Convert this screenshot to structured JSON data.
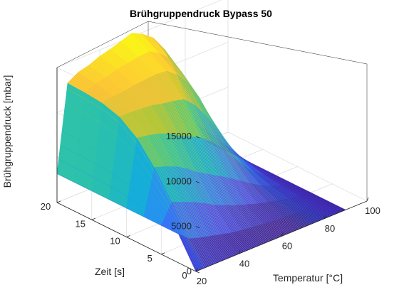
{
  "chart_data": {
    "type": "surface",
    "title": "Brühgruppendruck Bypass 50",
    "xlabel": "Temperatur [°C]",
    "ylabel": "Zeit [s]",
    "zlabel": "Brühgruppendruck [mbar]",
    "x_ticks": [
      "20",
      "40",
      "60",
      "80",
      "100"
    ],
    "y_ticks": [
      "0",
      "5",
      "10",
      "15",
      "20"
    ],
    "z_ticks": [
      "0",
      "5000",
      "10000",
      "15000"
    ],
    "xlim": [
      20,
      100
    ],
    "ylim": [
      0,
      20
    ],
    "zlim": [
      0,
      15000
    ],
    "grid": true,
    "colormap": "parula",
    "x": [
      20,
      25,
      30,
      35,
      40,
      45,
      50,
      55,
      60,
      65,
      70,
      75,
      80,
      85,
      90
    ],
    "series": [
      {
        "y": 20,
        "z": [
          3200,
          12800,
          13500,
          13800,
          14300,
          14600,
          15000,
          15400,
          14800,
          13900,
          12200,
          9500,
          6000,
          2600,
          0
        ]
      },
      {
        "y": 17.5,
        "z": [
          3200,
          12700,
          13200,
          13400,
          13800,
          14000,
          14200,
          14300,
          13600,
          12500,
          10600,
          8000,
          4800,
          2100,
          0
        ]
      },
      {
        "y": 15,
        "z": [
          3200,
          12500,
          12700,
          12800,
          13000,
          13100,
          13200,
          13100,
          12200,
          10800,
          8800,
          6200,
          3600,
          1500,
          0
        ]
      },
      {
        "y": 12.5,
        "z": [
          3200,
          11900,
          11900,
          11800,
          11700,
          11400,
          11200,
          10900,
          9800,
          8200,
          6300,
          4200,
          2300,
          900,
          0
        ]
      },
      {
        "y": 10,
        "z": [
          3200,
          10500,
          10300,
          10000,
          9500,
          8800,
          8200,
          7600,
          6600,
          5400,
          3900,
          2500,
          1300,
          500,
          0
        ]
      },
      {
        "y": 7.5,
        "z": [
          3200,
          8200,
          7800,
          7300,
          6600,
          5700,
          5000,
          4300,
          3600,
          2800,
          2000,
          1300,
          700,
          300,
          0
        ]
      },
      {
        "y": 5,
        "z": [
          3200,
          5300,
          4800,
          4300,
          3700,
          3000,
          2500,
          2000,
          1600,
          1200,
          900,
          600,
          300,
          100,
          0
        ]
      },
      {
        "y": 2.5,
        "z": [
          3200,
          2200,
          1800,
          1500,
          1200,
          900,
          700,
          550,
          400,
          300,
          200,
          150,
          100,
          50,
          0
        ]
      },
      {
        "y": 0,
        "z": [
          0,
          0,
          0,
          0,
          0,
          0,
          0,
          0,
          0,
          0,
          0,
          0,
          0,
          0,
          0
        ]
      }
    ]
  }
}
